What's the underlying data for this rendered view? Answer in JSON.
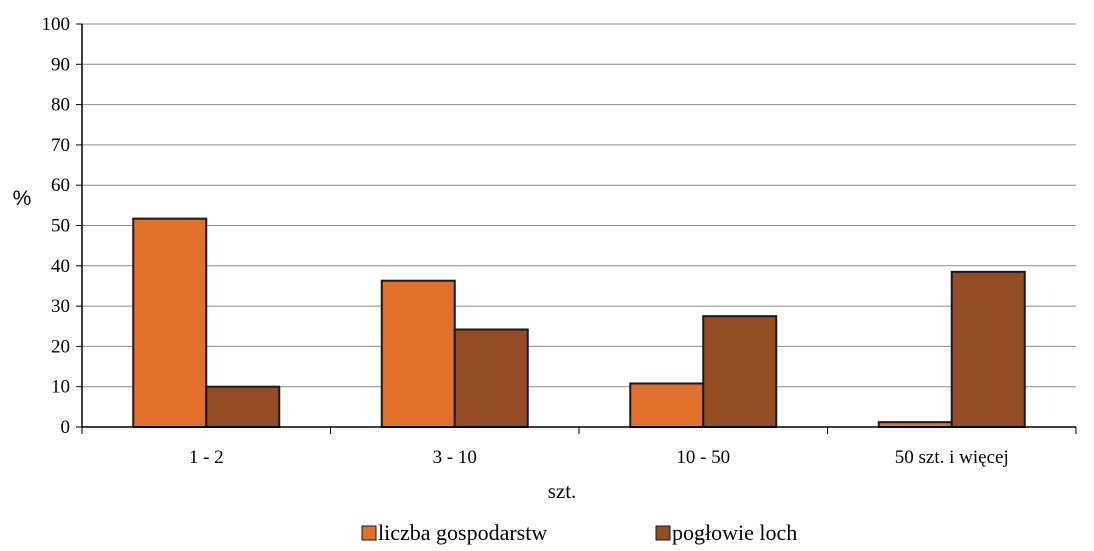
{
  "chart_data": {
    "type": "bar",
    "title": "",
    "xlabel": "szt.",
    "ylabel": "%",
    "ylim": [
      0,
      100
    ],
    "yticks": [
      0,
      10,
      20,
      30,
      40,
      50,
      60,
      70,
      80,
      90,
      100
    ],
    "categories": [
      "1 - 2",
      "3 - 10",
      "10 - 50",
      "50 szt. i więcej"
    ],
    "series": [
      {
        "name": "liczba gospodarstw",
        "color": "#E0702C",
        "values": [
          51.7,
          36.3,
          10.8,
          1.2
        ]
      },
      {
        "name": "pogłowie loch",
        "color": "#934C24",
        "values": [
          10.0,
          24.2,
          27.5,
          38.5
        ]
      }
    ],
    "grid": true,
    "legend_position": "bottom"
  }
}
